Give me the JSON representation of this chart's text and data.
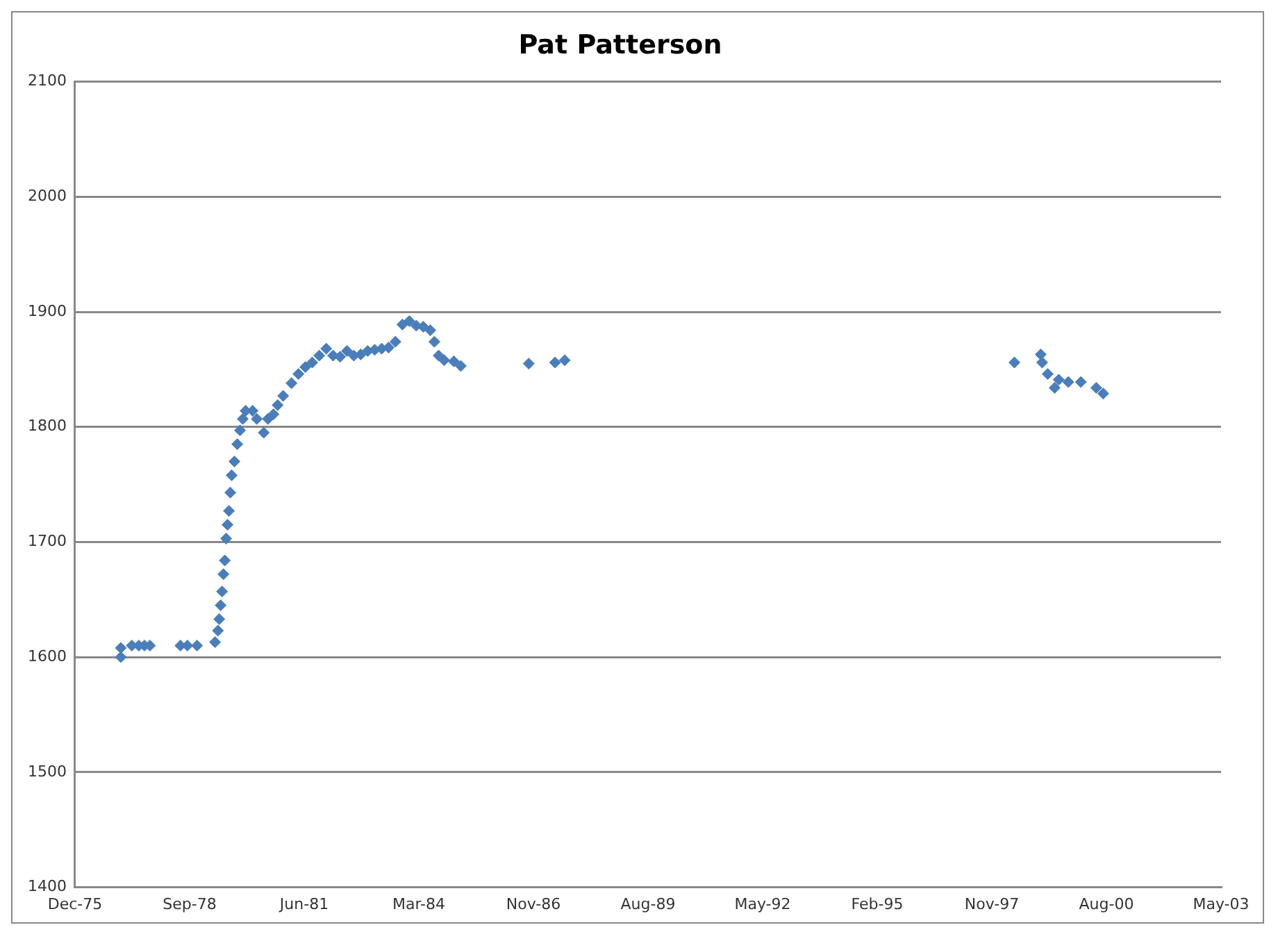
{
  "chart_data": {
    "type": "scatter",
    "title": "Pat Patterson",
    "x": [
      "1977-01-18",
      "1977-01-18",
      "1977-04-24",
      "1977-06-24",
      "1977-08-12",
      "1977-09-29",
      "1978-06-22",
      "1978-08-22",
      "1978-11-14",
      "1979-04-20",
      "1979-05-15",
      "1979-05-27",
      "1979-06-08",
      "1979-06-20",
      "1979-07-02",
      "1979-07-14",
      "1979-07-26",
      "1979-08-07",
      "1979-08-19",
      "1979-08-31",
      "1979-09-12",
      "1979-10-06",
      "1979-10-31",
      "1979-11-24",
      "1979-12-18",
      "1980-01-12",
      "1980-03-13",
      "1980-04-18",
      "1980-06-18",
      "1980-07-24",
      "1980-09-11",
      "1980-10-17",
      "1980-12-04",
      "1981-02-15",
      "1981-04-17",
      "1981-06-16",
      "1981-08-15",
      "1981-10-15",
      "1981-12-15",
      "1982-02-13",
      "1982-04-15",
      "1982-06-14",
      "1982-08-13",
      "1982-10-12",
      "1982-12-12",
      "1983-02-11",
      "1983-04-13",
      "1983-06-12",
      "1983-08-11",
      "1983-10-11",
      "1983-12-10",
      "1984-02-09",
      "1984-04-10",
      "1984-06-10",
      "1984-07-16",
      "1984-08-22",
      "1984-10-09",
      "1985-01-02",
      "1985-03-03",
      "1986-10-17",
      "1987-06-04",
      "1987-08-27",
      "1998-05-25",
      "1999-01-10",
      "1999-01-22",
      "1999-03-11",
      "1999-05-11",
      "1999-06-16",
      "1999-09-08",
      "1999-12-26",
      "2000-05-08",
      "2000-07-08"
    ],
    "series": [
      {
        "color": "#4a7ebb",
        "values": [
          1600,
          1608,
          1610,
          1610,
          1610,
          1610,
          1610,
          1610,
          1610,
          1613,
          1623,
          1633,
          1645,
          1657,
          1672,
          1684,
          1703,
          1715,
          1727,
          1743,
          1758,
          1770,
          1785,
          1797,
          1807,
          1814,
          1814,
          1807,
          1795,
          1807,
          1811,
          1819,
          1827,
          1838,
          1846,
          1852,
          1856,
          1862,
          1868,
          1862,
          1861,
          1866,
          1862,
          1863,
          1866,
          1867,
          1868,
          1869,
          1874,
          1889,
          1892,
          1888,
          1887,
          1884,
          1874,
          1862,
          1858,
          1857,
          1853,
          1855,
          1856,
          1858,
          1856,
          1863,
          1856,
          1846,
          1834,
          1841,
          1839,
          1839,
          1834,
          1829
        ]
      }
    ],
    "xlim": [
      "1975-12-15",
      "2003-05-02"
    ],
    "xticks": [
      {
        "value": "1975-12-15",
        "label": "Dec-75"
      },
      {
        "value": "1978-09-10",
        "label": "Sep-78"
      },
      {
        "value": "1981-06-06",
        "label": "Jun-81"
      },
      {
        "value": "1984-03-02",
        "label": "Mar-84"
      },
      {
        "value": "1986-11-27",
        "label": "Nov-86"
      },
      {
        "value": "1989-08-23",
        "label": "Aug-89"
      },
      {
        "value": "1992-05-19",
        "label": "May-92"
      },
      {
        "value": "1995-02-13",
        "label": "Feb-95"
      },
      {
        "value": "1997-11-09",
        "label": "Nov-97"
      },
      {
        "value": "2000-08-05",
        "label": "Aug-00"
      },
      {
        "value": "2003-05-02",
        "label": "May-03"
      }
    ],
    "ylim": [
      1400,
      2100
    ],
    "yticks": [
      1400,
      1500,
      1600,
      1700,
      1800,
      1900,
      2000,
      2100
    ],
    "grid": "y",
    "legend": false,
    "marker": "diamond"
  }
}
